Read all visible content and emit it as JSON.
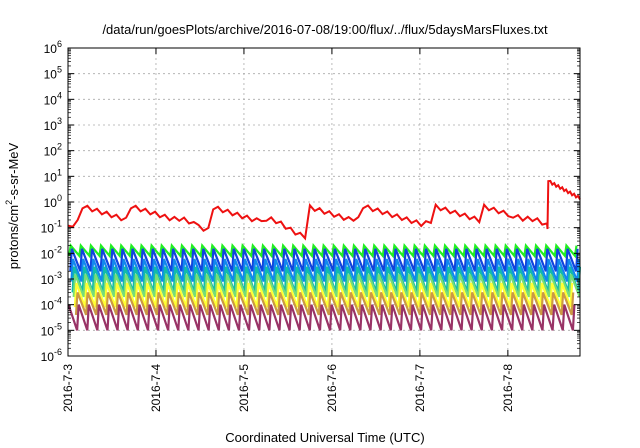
{
  "chart_data": {
    "type": "line",
    "title": "/data/run/goesPlots/archive/2016-07-08/19:00/flux/../flux/5daysMarsFluxes.txt",
    "xlabel": "Coordinated Universal Time (UTC)",
    "ylabel_parts": {
      "base": "protons/cm",
      "sup": "2",
      "rest": "-s-sr-MeV"
    },
    "yscale": "log",
    "ylim_exp": [
      -6,
      6
    ],
    "y_tick_base": "10",
    "y_tick_exponents": [
      "-6",
      "-5",
      "-4",
      "-3",
      "-2",
      "-1",
      "0",
      "1",
      "2",
      "3",
      "4",
      "5",
      "6"
    ],
    "xlim_days": [
      0,
      5.82
    ],
    "x_ticks": [
      {
        "day": 0,
        "label": "2016-7-3"
      },
      {
        "day": 1,
        "label": "2016-7-4"
      },
      {
        "day": 2,
        "label": "2016-7-5"
      },
      {
        "day": 3,
        "label": "2016-7-6"
      },
      {
        "day": 4,
        "label": "2016-7-7"
      },
      {
        "day": 5,
        "label": "2016-7-8"
      }
    ],
    "grid": true,
    "series_colors": [
      "#ee1111",
      "#22ee22",
      "#1144dd",
      "#1188ee",
      "#11bbaa",
      "#77dd77",
      "#ffff33",
      "#cc9944",
      "#993366"
    ],
    "series_estimated": [
      {
        "color": "#ee1111",
        "peak": 0.7,
        "trough": 0.1,
        "note_jump_day": 5.45,
        "jump_value": 6.5,
        "end_value": 1.4
      },
      {
        "color": "#22ee22",
        "peak": 0.02,
        "trough": 0.008
      },
      {
        "color": "#1144dd",
        "peak": 0.015,
        "trough": 0.002
      },
      {
        "color": "#1188ee",
        "peak": 0.006,
        "trough": 0.0008
      },
      {
        "color": "#11bbaa",
        "peak": 0.003,
        "trough": 0.0003
      },
      {
        "color": "#77dd77",
        "peak": 0.0015,
        "trough": 0.0002
      },
      {
        "color": "#ffff33",
        "peak": 0.0007,
        "trough": 8e-05
      },
      {
        "color": "#cc9944",
        "peak": 0.0003,
        "trough": 4e-05
      },
      {
        "color": "#993366",
        "peak": 0.0001,
        "trough": 1e-05
      }
    ]
  }
}
